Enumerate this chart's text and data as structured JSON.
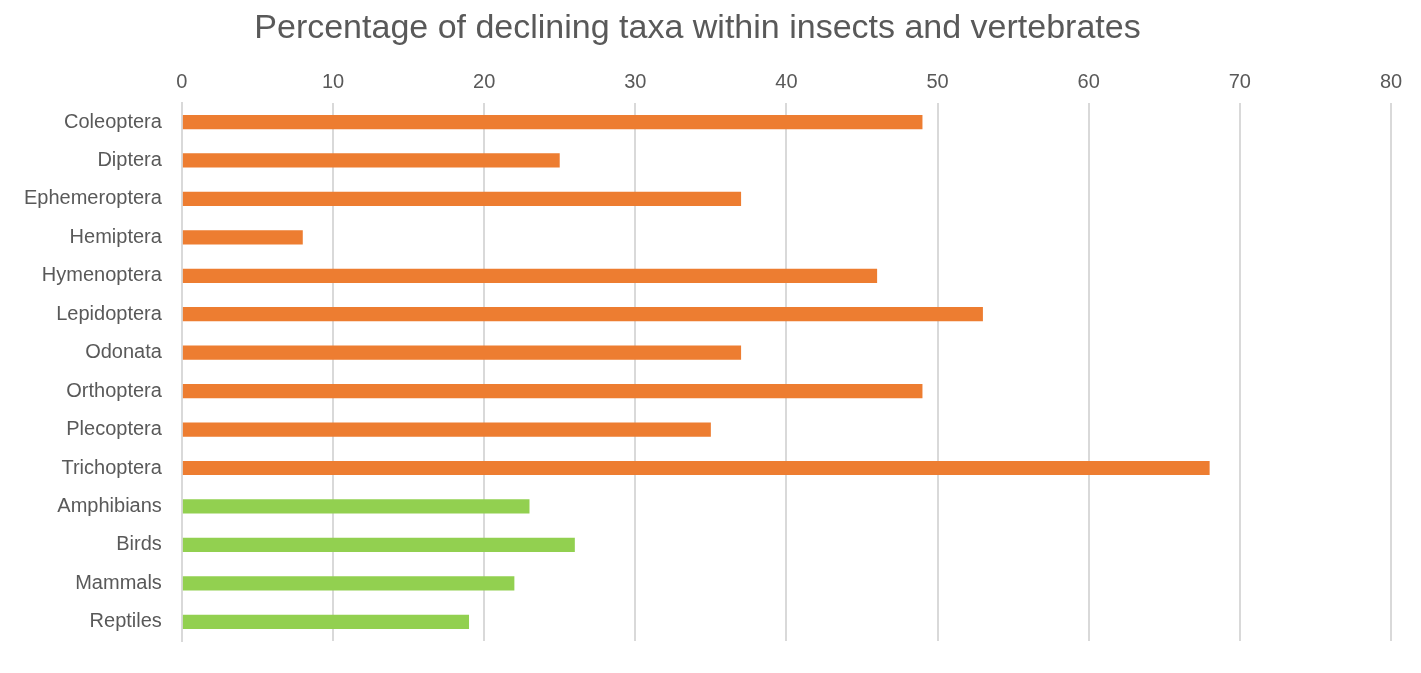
{
  "chart_data": {
    "type": "bar",
    "orientation": "horizontal",
    "title": "Percentage of declining taxa within insects and vertebrates",
    "categories": [
      "Coleoptera",
      "Diptera",
      "Ephemeroptera",
      "Hemiptera",
      "Hymenoptera",
      "Lepidoptera",
      "Odonata",
      "Orthoptera",
      "Plecoptera",
      "Trichoptera",
      "Amphibians",
      "Birds",
      "Mammals",
      "Reptiles"
    ],
    "values": [
      49,
      25,
      37,
      8,
      46,
      53,
      37,
      49,
      35,
      68,
      23,
      26,
      22,
      19
    ],
    "colors": [
      "#ed7d31",
      "#ed7d31",
      "#ed7d31",
      "#ed7d31",
      "#ed7d31",
      "#ed7d31",
      "#ed7d31",
      "#ed7d31",
      "#ed7d31",
      "#ed7d31",
      "#92d050",
      "#92d050",
      "#92d050",
      "#92d050"
    ],
    "xlim": [
      0,
      80
    ],
    "xticks": [
      0,
      10,
      20,
      30,
      40,
      50,
      60,
      70,
      80
    ],
    "grid": "x",
    "legend": false
  }
}
